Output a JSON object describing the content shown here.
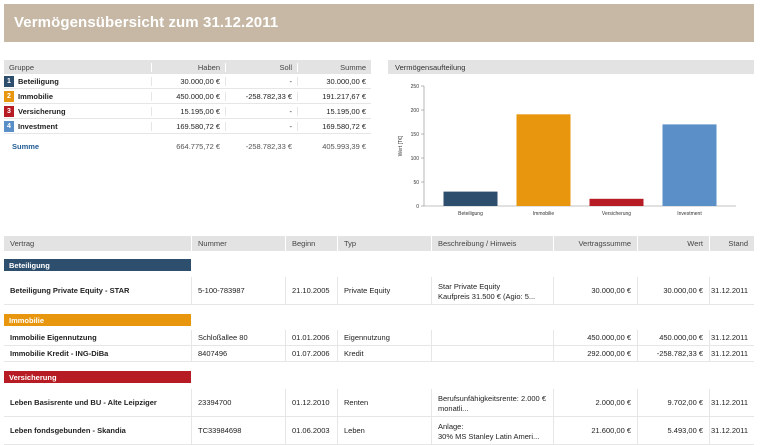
{
  "banner_title": "Vermögensübersicht zum 31.12.2011",
  "summary": {
    "headers": {
      "group": "Gruppe",
      "haben": "Haben",
      "soll": "Soll",
      "summe": "Summe"
    },
    "rows": [
      {
        "num": "1",
        "color": "#2e4e6e",
        "group": "Beteiligung",
        "haben": "30.000,00 €",
        "soll": "-",
        "summe": "30.000,00 €"
      },
      {
        "num": "2",
        "color": "#e8960e",
        "group": "Immobilie",
        "haben": "450.000,00 €",
        "soll": "-258.782,33 €",
        "summe": "191.217,67 €"
      },
      {
        "num": "3",
        "color": "#b71c24",
        "group": "Versicherung",
        "haben": "15.195,00 €",
        "soll": "-",
        "summe": "15.195,00 €"
      },
      {
        "num": "4",
        "color": "#5a8fc7",
        "group": "Investment",
        "haben": "169.580,72 €",
        "soll": "-",
        "summe": "169.580,72 €"
      }
    ],
    "total": {
      "label": "Summe",
      "haben": "664.775,72 €",
      "soll": "-258.782,33 €",
      "summe": "405.993,39 €"
    }
  },
  "chart_header": "Vermögensaufteilung",
  "chart_data": {
    "type": "bar",
    "categories": [
      "Beteiligung",
      "Immobilie",
      "Versicherung",
      "Investment"
    ],
    "values": [
      30,
      191,
      15,
      170
    ],
    "colors": [
      "#2e4e6e",
      "#e8960e",
      "#b71c24",
      "#5a8fc7"
    ],
    "ylabel": "Wert [T€]",
    "yticks": [
      0,
      50,
      100,
      150,
      200,
      250
    ],
    "ylim": [
      0,
      250
    ]
  },
  "contracts": {
    "headers": [
      "Vertrag",
      "Nummer",
      "Beginn",
      "Typ",
      "Beschreibung / Hinweis",
      "Vertragssumme",
      "Wert",
      "Stand"
    ],
    "sections": [
      {
        "label": "Beteiligung",
        "color": "#2e4e6e",
        "rows": [
          {
            "vertrag": "Beteiligung Private Equity - STAR",
            "nummer": "5-100-783987",
            "beginn": "21.10.2005",
            "typ": "Private Equity",
            "desc1": "Star Private Equity",
            "desc2": "Kaufpreis 31.500 € (Agio: 5...",
            "vsumme": "30.000,00 €",
            "wert": "30.000,00 €",
            "stand": "31.12.2011"
          }
        ]
      },
      {
        "label": "Immobilie",
        "color": "#e8960e",
        "rows": [
          {
            "vertrag": "Immobilie Eigennutzung",
            "nummer": "Schloßallee 80",
            "beginn": "01.01.2006",
            "typ": "Eigennutzung",
            "desc1": "",
            "desc2": "",
            "vsumme": "450.000,00 €",
            "wert": "450.000,00 €",
            "stand": "31.12.2011"
          },
          {
            "vertrag": "Immobilie Kredit - ING-DiBa",
            "nummer": "8407496",
            "beginn": "01.07.2006",
            "typ": "Kredit",
            "desc1": "",
            "desc2": "",
            "vsumme": "292.000,00 €",
            "wert": "-258.782,33 €",
            "stand": "31.12.2011"
          }
        ]
      },
      {
        "label": "Versicherung",
        "color": "#b71c24",
        "rows": [
          {
            "vertrag": "Leben Basisrente und BU - Alte Leipziger",
            "nummer": "23394700",
            "beginn": "01.12.2010",
            "typ": "Renten",
            "desc1": "Berufsunfähigkeitsrente: 2.000 €",
            "desc2": "monatli...",
            "vsumme": "2.000,00 €",
            "wert": "9.702,00 €",
            "stand": "31.12.2011"
          },
          {
            "vertrag": "Leben fondsgebunden - Skandia",
            "nummer": "TC33984698",
            "beginn": "01.06.2003",
            "typ": "Leben",
            "desc1": "Anlage:",
            "desc2": "30% MS Stanley Latin Ameri...",
            "vsumme": "21.600,00 €",
            "wert": "5.493,00 €",
            "stand": "31.12.2011"
          }
        ]
      }
    ]
  }
}
